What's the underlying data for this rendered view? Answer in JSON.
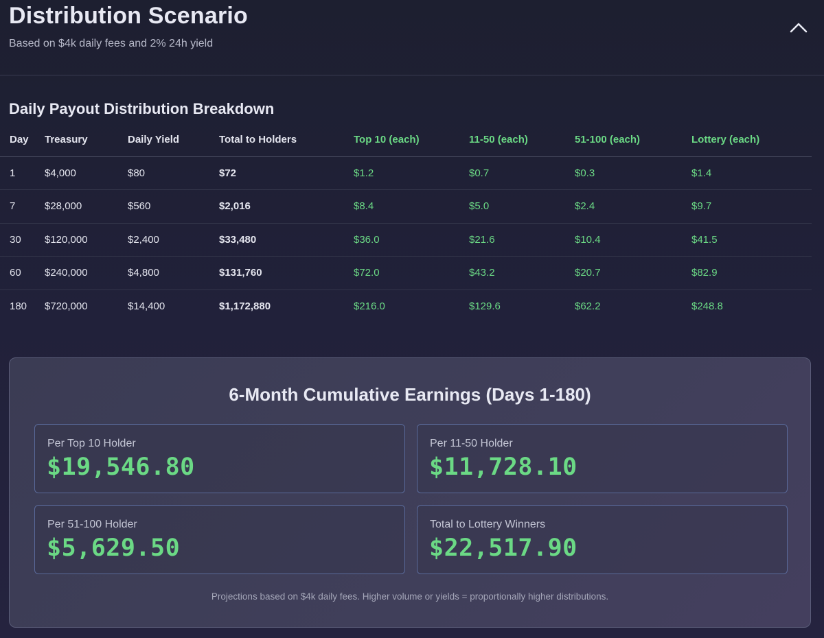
{
  "header": {
    "title": "Distribution Scenario",
    "subtitle": "Based on $4k daily fees and 2% 24h yield",
    "collapse_icon": "chevron-up-icon"
  },
  "breakdown": {
    "title": "Daily Payout Distribution Breakdown",
    "columns": [
      "Day",
      "Treasury",
      "Daily Yield",
      "Total to Holders",
      "Top 10 (each)",
      "11-50 (each)",
      "51-100 (each)",
      "Lottery (each)"
    ],
    "rows": [
      [
        "1",
        "$4,000",
        "$80",
        "$72",
        "$1.2",
        "$0.7",
        "$0.3",
        "$1.4"
      ],
      [
        "7",
        "$28,000",
        "$560",
        "$2,016",
        "$8.4",
        "$5.0",
        "$2.4",
        "$9.7"
      ],
      [
        "30",
        "$120,000",
        "$2,400",
        "$33,480",
        "$36.0",
        "$21.6",
        "$10.4",
        "$41.5"
      ],
      [
        "60",
        "$240,000",
        "$4,800",
        "$131,760",
        "$72.0",
        "$43.2",
        "$20.7",
        "$82.9"
      ],
      [
        "180",
        "$720,000",
        "$14,400",
        "$1,172,880",
        "$216.0",
        "$129.6",
        "$62.2",
        "$248.8"
      ]
    ]
  },
  "summary": {
    "title": "6-Month Cumulative Earnings (Days 1-180)",
    "cards": [
      {
        "label": "Per Top 10 Holder",
        "value": "$19,546.80"
      },
      {
        "label": "Per 11-50 Holder",
        "value": "$11,728.10"
      },
      {
        "label": "Per 51-100 Holder",
        "value": "$5,629.50"
      },
      {
        "label": "Total to Lottery Winners",
        "value": "$22,517.90"
      }
    ],
    "footnote": "Projections based on $4k daily fees. Higher volume or yields = proportionally higher distributions."
  },
  "colors": {
    "accent_green": "#6bd985",
    "background": "#1f2033",
    "panel": "#3e3e58"
  }
}
